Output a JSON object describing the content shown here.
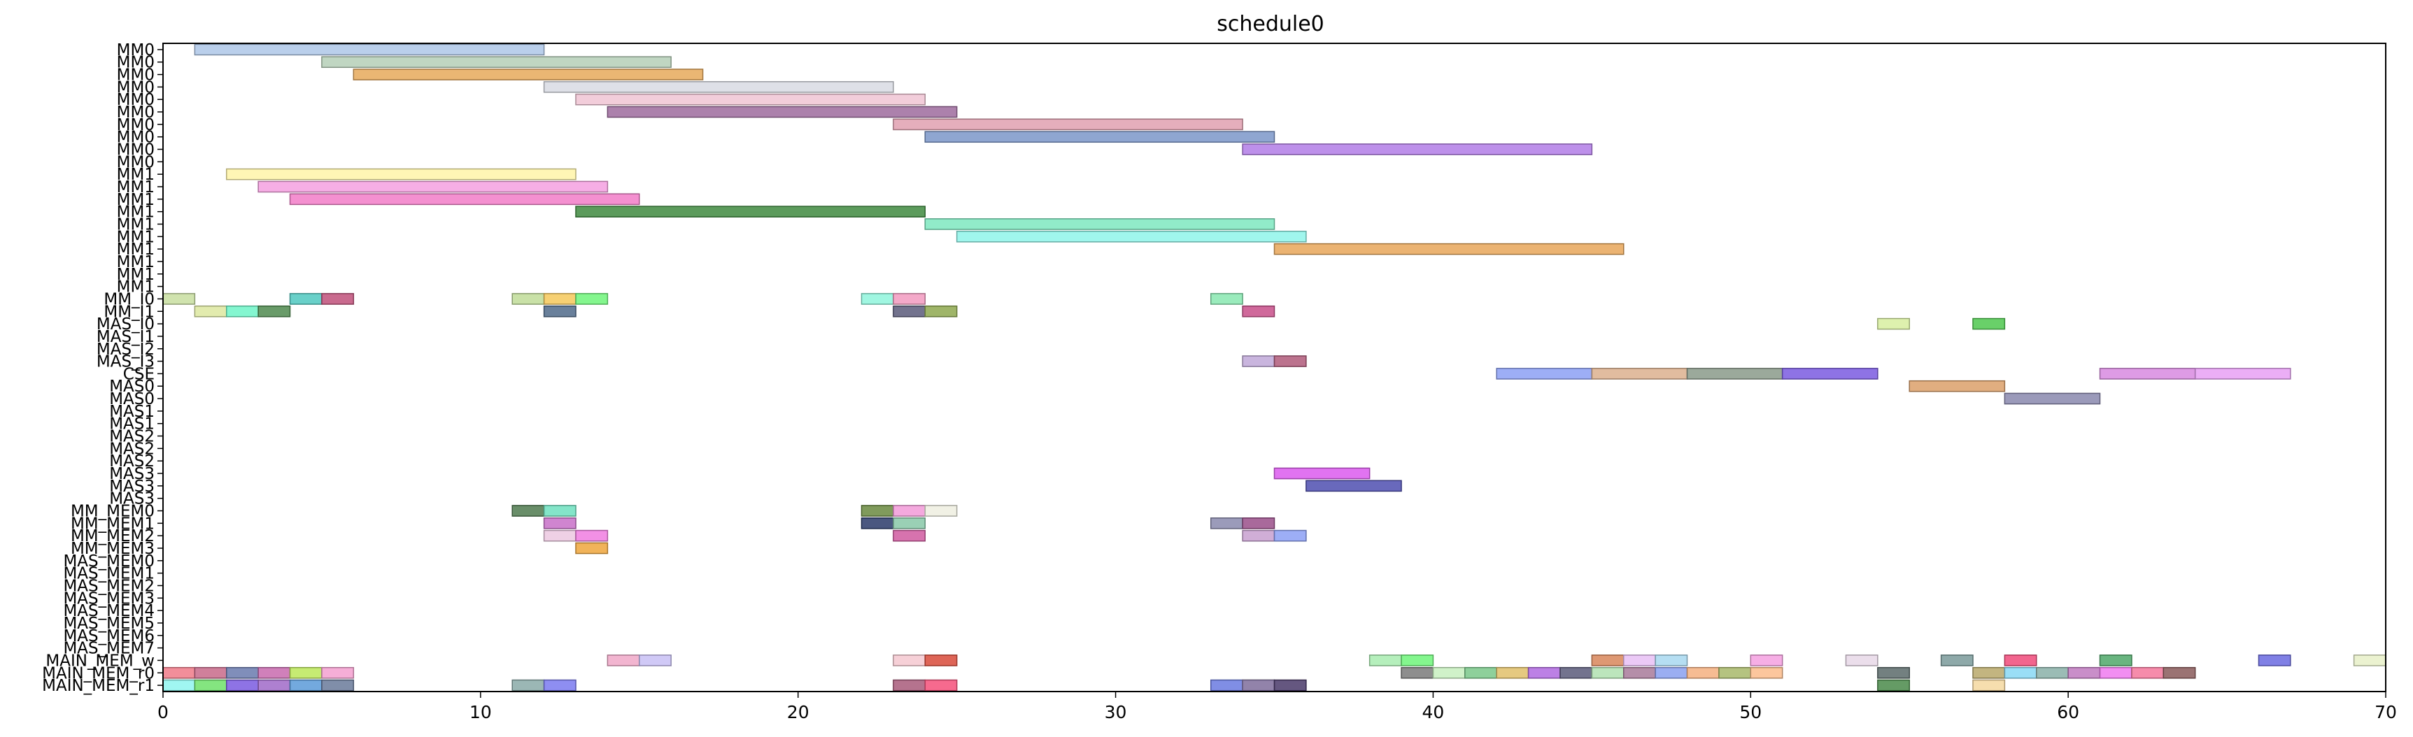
{
  "chart_data": {
    "type": "gantt",
    "title": "schedule0",
    "xlabel": "",
    "ylabel": "",
    "xlim": [
      0,
      70
    ],
    "xticks": [
      0,
      10,
      20,
      30,
      40,
      50,
      60,
      70
    ],
    "grid": false,
    "rows": [
      "MM0",
      "MM0",
      "MM0",
      "MM0",
      "MM0",
      "MM0",
      "MM0",
      "MM0",
      "MM0",
      "MM0",
      "MM1",
      "MM1",
      "MM1",
      "MM1",
      "MM1",
      "MM1",
      "MM1",
      "MM1",
      "MM1",
      "MM1",
      "MM_I0",
      "MM_I1",
      "MAS_I0",
      "MAS_I1",
      "MAS_I2",
      "MAS_I3",
      "CSE",
      "MAS0",
      "MAS0",
      "MAS1",
      "MAS1",
      "MAS2",
      "MAS2",
      "MAS2",
      "MAS3",
      "MAS3",
      "MAS3",
      "MM_MEM0",
      "MM_MEM1",
      "MM_MEM2",
      "MM_MEM3",
      "MAS_MEM0",
      "MAS_MEM1",
      "MAS_MEM2",
      "MAS_MEM3",
      "MAS_MEM4",
      "MAS_MEM5",
      "MAS_MEM6",
      "MAS_MEM7",
      "MAIN_MEM_w",
      "MAIN_MEM_r0",
      "MAIN_MEM_r1"
    ],
    "bars": [
      {
        "row": 0,
        "start": 1,
        "end": 12,
        "color": "#aec7e8"
      },
      {
        "row": 1,
        "start": 5,
        "end": 16,
        "color": "#b5cfb7"
      },
      {
        "row": 2,
        "start": 6,
        "end": 17,
        "color": "#e6a95a"
      },
      {
        "row": 3,
        "start": 12,
        "end": 23,
        "color": "#d8dae3"
      },
      {
        "row": 4,
        "start": 13,
        "end": 24,
        "color": "#f0c4d4"
      },
      {
        "row": 5,
        "start": 14,
        "end": 25,
        "color": "#9e6b9e"
      },
      {
        "row": 6,
        "start": 23,
        "end": 34,
        "color": "#e0a0b0"
      },
      {
        "row": 7,
        "start": 24,
        "end": 35,
        "color": "#7b96c9"
      },
      {
        "row": 8,
        "start": 34,
        "end": 45,
        "color": "#b27ce6"
      },
      {
        "row": 10,
        "start": 2,
        "end": 13,
        "color": "#fff4a8"
      },
      {
        "row": 11,
        "start": 3,
        "end": 14,
        "color": "#f5a0e0"
      },
      {
        "row": 12,
        "start": 4,
        "end": 15,
        "color": "#f27cc8"
      },
      {
        "row": 13,
        "start": 13,
        "end": 24,
        "color": "#3f8a3f"
      },
      {
        "row": 14,
        "start": 24,
        "end": 35,
        "color": "#7ee8c0"
      },
      {
        "row": 15,
        "start": 25,
        "end": 36,
        "color": "#8ff5ea"
      },
      {
        "row": 16,
        "start": 35,
        "end": 46,
        "color": "#e8a659"
      },
      {
        "row": 20,
        "start": 0,
        "end": 1,
        "color": "#c8dea0"
      },
      {
        "row": 20,
        "start": 4,
        "end": 5,
        "color": "#4fc8c0"
      },
      {
        "row": 20,
        "start": 5,
        "end": 6,
        "color": "#c0507a"
      },
      {
        "row": 20,
        "start": 11,
        "end": 12,
        "color": "#c0dc98"
      },
      {
        "row": 20,
        "start": 12,
        "end": 13,
        "color": "#f5c85a"
      },
      {
        "row": 20,
        "start": 13,
        "end": 14,
        "color": "#6ef57a"
      },
      {
        "row": 20,
        "start": 22,
        "end": 23,
        "color": "#8ff5dc"
      },
      {
        "row": 20,
        "start": 23,
        "end": 24,
        "color": "#f29ac0"
      },
      {
        "row": 20,
        "start": 33,
        "end": 34,
        "color": "#88e8b0"
      },
      {
        "row": 21,
        "start": 1,
        "end": 2,
        "color": "#dde8a0"
      },
      {
        "row": 21,
        "start": 2,
        "end": 3,
        "color": "#6ef5c8"
      },
      {
        "row": 21,
        "start": 3,
        "end": 4,
        "color": "#4f8a4f"
      },
      {
        "row": 21,
        "start": 12,
        "end": 13,
        "color": "#4f6a8a"
      },
      {
        "row": 21,
        "start": 23,
        "end": 24,
        "color": "#5a5a7a"
      },
      {
        "row": 21,
        "start": 24,
        "end": 25,
        "color": "#8ea84f"
      },
      {
        "row": 21,
        "start": 34,
        "end": 35,
        "color": "#c84f8a"
      },
      {
        "row": 22,
        "start": 54,
        "end": 55,
        "color": "#d8eea0"
      },
      {
        "row": 22,
        "start": 57,
        "end": 58,
        "color": "#4fc84f"
      },
      {
        "row": 25,
        "start": 34,
        "end": 35,
        "color": "#c0a8d8"
      },
      {
        "row": 25,
        "start": 35,
        "end": 36,
        "color": "#b05a7a"
      },
      {
        "row": 26,
        "start": 42,
        "end": 45,
        "color": "#8ca0f5"
      },
      {
        "row": 26,
        "start": 45,
        "end": 48,
        "color": "#dcb08e"
      },
      {
        "row": 26,
        "start": 48,
        "end": 51,
        "color": "#8a9a8a"
      },
      {
        "row": 26,
        "start": 51,
        "end": 54,
        "color": "#7a5ae0"
      },
      {
        "row": 26,
        "start": 61,
        "end": 64,
        "color": "#d88ae0"
      },
      {
        "row": 26,
        "start": 64,
        "end": 67,
        "color": "#e8a0f5"
      },
      {
        "row": 27,
        "start": 55,
        "end": 58,
        "color": "#dca06a"
      },
      {
        "row": 28,
        "start": 58,
        "end": 61,
        "color": "#8a88ae"
      },
      {
        "row": 34,
        "start": 35,
        "end": 38,
        "color": "#dc5aef"
      },
      {
        "row": 35,
        "start": 36,
        "end": 39,
        "color": "#4f4fb0"
      },
      {
        "row": 37,
        "start": 11,
        "end": 12,
        "color": "#4f7a4f"
      },
      {
        "row": 37,
        "start": 12,
        "end": 13,
        "color": "#6ee0c0"
      },
      {
        "row": 37,
        "start": 22,
        "end": 23,
        "color": "#6a8a3f"
      },
      {
        "row": 37,
        "start": 23,
        "end": 24,
        "color": "#f29ad8"
      },
      {
        "row": 37,
        "start": 24,
        "end": 25,
        "color": "#efefe0"
      },
      {
        "row": 38,
        "start": 12,
        "end": 13,
        "color": "#c870c8"
      },
      {
        "row": 38,
        "start": 22,
        "end": 23,
        "color": "#2a3a6a"
      },
      {
        "row": 38,
        "start": 23,
        "end": 24,
        "color": "#88c8a8"
      },
      {
        "row": 38,
        "start": 33,
        "end": 34,
        "color": "#8a8aae"
      },
      {
        "row": 38,
        "start": 34,
        "end": 35,
        "color": "#9a4f8a"
      },
      {
        "row": 39,
        "start": 12,
        "end": 13,
        "color": "#ecc8e0"
      },
      {
        "row": 39,
        "start": 13,
        "end": 14,
        "color": "#f07ce0"
      },
      {
        "row": 39,
        "start": 23,
        "end": 24,
        "color": "#d05aa0"
      },
      {
        "row": 39,
        "start": 34,
        "end": 35,
        "color": "#c8a0d0"
      },
      {
        "row": 39,
        "start": 35,
        "end": 36,
        "color": "#8ca0f5"
      },
      {
        "row": 40,
        "start": 13,
        "end": 14,
        "color": "#eea63c"
      },
      {
        "row": 49,
        "start": 14,
        "end": 15,
        "color": "#f0a8c8"
      },
      {
        "row": 49,
        "start": 15,
        "end": 16,
        "color": "#c8c0f5"
      },
      {
        "row": 49,
        "start": 23,
        "end": 24,
        "color": "#f5c8d0"
      },
      {
        "row": 49,
        "start": 24,
        "end": 25,
        "color": "#d84a3a"
      },
      {
        "row": 49,
        "start": 38,
        "end": 39,
        "color": "#a8ecb0"
      },
      {
        "row": 49,
        "start": 39,
        "end": 40,
        "color": "#6ef57a"
      },
      {
        "row": 49,
        "start": 45,
        "end": 46,
        "color": "#d8865a"
      },
      {
        "row": 49,
        "start": 46,
        "end": 47,
        "color": "#e8c0f5"
      },
      {
        "row": 49,
        "start": 47,
        "end": 48,
        "color": "#a8d8f0"
      },
      {
        "row": 49,
        "start": 50,
        "end": 51,
        "color": "#f5a0e0"
      },
      {
        "row": 49,
        "start": 53,
        "end": 54,
        "color": "#e8d8e8"
      },
      {
        "row": 49,
        "start": 56,
        "end": 57,
        "color": "#7a9a9a"
      },
      {
        "row": 49,
        "start": 58,
        "end": 59,
        "color": "#f04a7a"
      },
      {
        "row": 49,
        "start": 61,
        "end": 62,
        "color": "#4fa86a"
      },
      {
        "row": 49,
        "start": 66,
        "end": 67,
        "color": "#6a6ae0"
      },
      {
        "row": 49,
        "start": 69,
        "end": 70,
        "color": "#e8f0c8"
      },
      {
        "row": 50,
        "start": 0,
        "end": 1,
        "color": "#f07a88"
      },
      {
        "row": 50,
        "start": 1,
        "end": 2,
        "color": "#c86a8a"
      },
      {
        "row": 50,
        "start": 2,
        "end": 3,
        "color": "#6a7aae"
      },
      {
        "row": 50,
        "start": 3,
        "end": 4,
        "color": "#c86aae"
      },
      {
        "row": 50,
        "start": 4,
        "end": 5,
        "color": "#bce85a"
      },
      {
        "row": 50,
        "start": 5,
        "end": 6,
        "color": "#f5a0d0"
      },
      {
        "row": 50,
        "start": 39,
        "end": 40,
        "color": "#7a7a7a"
      },
      {
        "row": 50,
        "start": 40,
        "end": 41,
        "color": "#c8f0c0"
      },
      {
        "row": 50,
        "start": 41,
        "end": 42,
        "color": "#7ac88a"
      },
      {
        "row": 50,
        "start": 42,
        "end": 43,
        "color": "#e0c06a"
      },
      {
        "row": 50,
        "start": 43,
        "end": 44,
        "color": "#b06ae0"
      },
      {
        "row": 50,
        "start": 44,
        "end": 45,
        "color": "#5a5a7a"
      },
      {
        "row": 50,
        "start": 45,
        "end": 46,
        "color": "#b0e0b0"
      },
      {
        "row": 50,
        "start": 46,
        "end": 47,
        "color": "#a87a9a"
      },
      {
        "row": 50,
        "start": 47,
        "end": 48,
        "color": "#8aa0f0"
      },
      {
        "row": 50,
        "start": 48,
        "end": 49,
        "color": "#f5b080"
      },
      {
        "row": 50,
        "start": 49,
        "end": 50,
        "color": "#a8b86a"
      },
      {
        "row": 50,
        "start": 50,
        "end": 51,
        "color": "#fcbc8c"
      },
      {
        "row": 50,
        "start": 54,
        "end": 55,
        "color": "#5a6a6a"
      },
      {
        "row": 50,
        "start": 57,
        "end": 58,
        "color": "#b8a86a"
      },
      {
        "row": 50,
        "start": 58,
        "end": 59,
        "color": "#88d8f5"
      },
      {
        "row": 50,
        "start": 59,
        "end": 60,
        "color": "#8ab0a8"
      },
      {
        "row": 50,
        "start": 60,
        "end": 61,
        "color": "#c07ac0"
      },
      {
        "row": 50,
        "start": 61,
        "end": 62,
        "color": "#f07af0"
      },
      {
        "row": 50,
        "start": 62,
        "end": 63,
        "color": "#f5789c"
      },
      {
        "row": 50,
        "start": 63,
        "end": 64,
        "color": "#8a5a5a"
      },
      {
        "row": 51,
        "start": 0,
        "end": 1,
        "color": "#8ff5f0"
      },
      {
        "row": 51,
        "start": 1,
        "end": 2,
        "color": "#6ee06a"
      },
      {
        "row": 51,
        "start": 2,
        "end": 3,
        "color": "#7a5ae0"
      },
      {
        "row": 51,
        "start": 3,
        "end": 4,
        "color": "#a06ac8"
      },
      {
        "row": 51,
        "start": 4,
        "end": 5,
        "color": "#5a9ad8"
      },
      {
        "row": 51,
        "start": 5,
        "end": 6,
        "color": "#6a7a9a"
      },
      {
        "row": 51,
        "start": 11,
        "end": 12,
        "color": "#8aaaa8"
      },
      {
        "row": 51,
        "start": 12,
        "end": 13,
        "color": "#7a7af0"
      },
      {
        "row": 51,
        "start": 23,
        "end": 24,
        "color": "#a85a7a"
      },
      {
        "row": 51,
        "start": 24,
        "end": 25,
        "color": "#f5507a"
      },
      {
        "row": 51,
        "start": 33,
        "end": 34,
        "color": "#6a7ae0"
      },
      {
        "row": 51,
        "start": 34,
        "end": 35,
        "color": "#b8a870"
      },
      {
        "row": 51,
        "start": 34,
        "end": 35,
        "color": "#8a7ab0"
      },
      {
        "row": 51,
        "start": 35,
        "end": 36,
        "color": "#4a3a6a"
      },
      {
        "row": 51,
        "start": 54,
        "end": 55,
        "color": "#4a8a4a"
      },
      {
        "row": 51,
        "start": 57,
        "end": 58,
        "color": "#f5d8a0"
      }
    ]
  }
}
